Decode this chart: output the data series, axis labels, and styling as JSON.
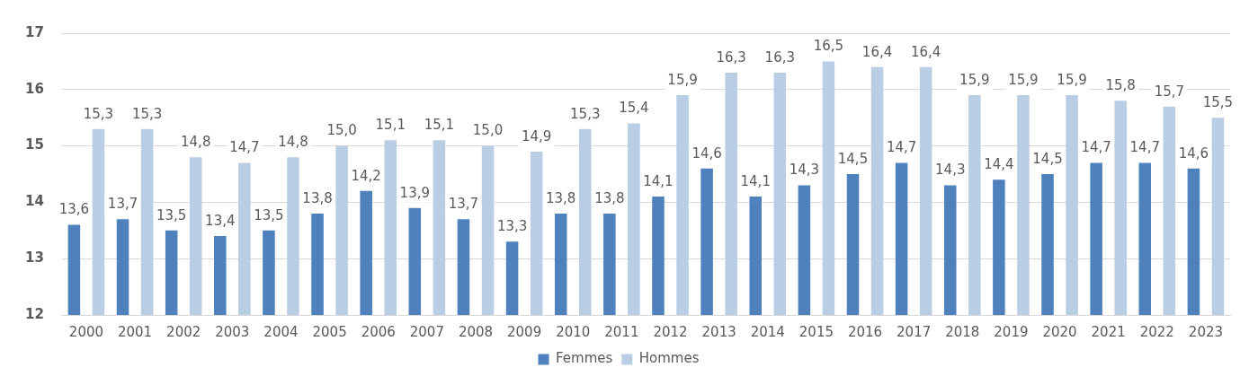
{
  "chart_data": {
    "type": "bar",
    "categories": [
      "2000",
      "2001",
      "2002",
      "2003",
      "2004",
      "2005",
      "2006",
      "2007",
      "2008",
      "2009",
      "2010",
      "2011",
      "2012",
      "2013",
      "2014",
      "2015",
      "2016",
      "2017",
      "2018",
      "2019",
      "2020",
      "2021",
      "2022",
      "2023"
    ],
    "series": [
      {
        "name": "Femmes",
        "color": "#4f81bd",
        "values": [
          13.6,
          13.7,
          13.5,
          13.4,
          13.5,
          13.8,
          14.2,
          13.9,
          13.7,
          13.3,
          13.8,
          13.8,
          14.1,
          14.6,
          14.1,
          14.3,
          14.5,
          14.7,
          14.3,
          14.4,
          14.5,
          14.7,
          14.7,
          14.6
        ],
        "value_labels": [
          "13,6",
          "13,7",
          "13,5",
          "13,4",
          "13,5",
          "13,8",
          "14,2",
          "13,9",
          "13,7",
          "13,3",
          "13,8",
          "13,8",
          "14,1",
          "14,6",
          "14,1",
          "14,3",
          "14,5",
          "14,7",
          "14,3",
          "14,4",
          "14,5",
          "14,7",
          "14,7",
          "14,6"
        ]
      },
      {
        "name": "Hommes",
        "color": "#b9cde5",
        "values": [
          15.3,
          15.3,
          14.8,
          14.7,
          14.8,
          15.0,
          15.1,
          15.1,
          15.0,
          14.9,
          15.3,
          15.4,
          15.9,
          16.3,
          16.3,
          16.5,
          16.4,
          16.4,
          15.9,
          15.9,
          15.9,
          15.8,
          15.7,
          15.5
        ],
        "value_labels": [
          "15,3",
          "15,3",
          "14,8",
          "14,7",
          "14,8",
          "15,0",
          "15,1",
          "15,1",
          "15,0",
          "14,9",
          "15,3",
          "15,4",
          "15,9",
          "16,3",
          "16,3",
          "16,5",
          "16,4",
          "16,4",
          "15,9",
          "15,9",
          "15,9",
          "15,8",
          "15,7",
          "15,5"
        ]
      }
    ],
    "ylim": [
      12,
      17
    ],
    "yticks": [
      12,
      13,
      14,
      15,
      16,
      17
    ],
    "grid": "y",
    "legend": "bottom"
  }
}
